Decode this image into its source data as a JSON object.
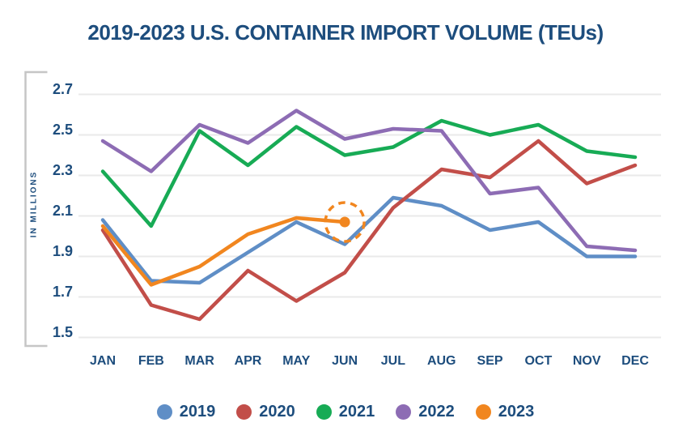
{
  "title": "2019-2023 U.S. CONTAINER IMPORT VOLUME (TEUs)",
  "y_axis_title": "IN MILLIONS",
  "colors": {
    "title_text": "#1d4d7d",
    "axis_text": "#1d4d7d",
    "gridline": "#eaeaea",
    "axis_bracket": "#c6c6c6",
    "background": "#ffffff"
  },
  "chart_data": {
    "type": "line",
    "title": "2019-2023 U.S. CONTAINER IMPORT VOLUME (TEUs)",
    "ylabel": "IN MILLIONS",
    "categories": [
      "JAN",
      "FEB",
      "MAR",
      "APR",
      "MAY",
      "JUN",
      "JUL",
      "AUG",
      "SEP",
      "OCT",
      "NOV",
      "DEC"
    ],
    "y_ticks": [
      2.7,
      2.5,
      2.3,
      2.1,
      1.9,
      1.7,
      1.5
    ],
    "ylim": [
      1.5,
      2.7
    ],
    "grid": "horizontal-only",
    "legend_position": "bottom",
    "series": [
      {
        "name": "2019",
        "color": "#5f8ec6",
        "values": [
          2.08,
          1.78,
          1.77,
          1.92,
          2.07,
          1.96,
          2.19,
          2.15,
          2.03,
          2.07,
          1.9,
          1.9
        ]
      },
      {
        "name": "2020",
        "color": "#c24e49",
        "values": [
          2.03,
          1.66,
          1.59,
          1.83,
          1.68,
          1.82,
          2.14,
          2.33,
          2.29,
          2.47,
          2.26,
          2.35
        ]
      },
      {
        "name": "2021",
        "color": "#17ab55",
        "values": [
          2.32,
          2.05,
          2.52,
          2.35,
          2.54,
          2.4,
          2.44,
          2.57,
          2.5,
          2.55,
          2.42,
          2.39
        ]
      },
      {
        "name": "2022",
        "color": "#8d6cb4",
        "values": [
          2.47,
          2.32,
          2.55,
          2.46,
          2.62,
          2.48,
          2.53,
          2.52,
          2.21,
          2.24,
          1.95,
          1.93
        ]
      },
      {
        "name": "2023",
        "color": "#f1861f",
        "values": [
          2.05,
          1.76,
          1.85,
          2.01,
          2.09,
          2.07,
          null,
          null,
          null,
          null,
          null,
          null
        ],
        "marker_last": true,
        "annotation": "dashed-circle"
      }
    ]
  }
}
